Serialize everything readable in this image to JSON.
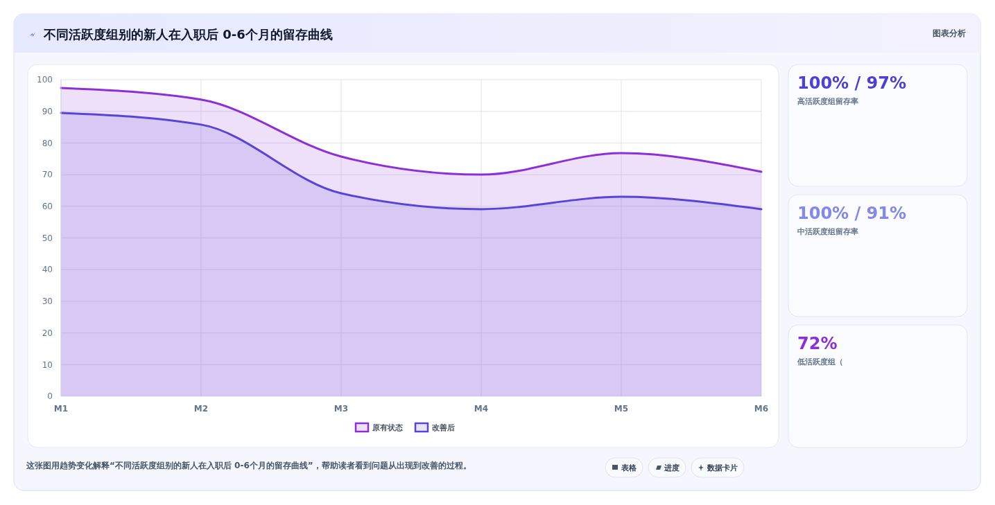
{
  "chart_data": [
    {
      "type": "area",
      "title": "不同活跃度组别的新人在入职后 0-6个月的留存曲线",
      "categories": [
        "M1",
        "M2",
        "M3",
        "M4",
        "M5",
        "M6"
      ],
      "series": [
        {
          "name": "原有状态",
          "color": "#8d2fd8",
          "values": [
            97.4,
            93.7,
            75.7,
            70,
            76.8,
            70.9
          ]
        },
        {
          "name": "改善后",
          "color": "#5b43d9",
          "values": [
            89.5,
            85.8,
            64.1,
            59.1,
            63,
            59.1
          ]
        }
      ],
      "ylim": [
        0,
        100
      ],
      "yticks": [
        0,
        10,
        20,
        30,
        40,
        50,
        60,
        70,
        80,
        90,
        100
      ],
      "grid": true,
      "legend": "bottom",
      "marker": "none",
      "line_style": "solid",
      "annotations": [
        "图表分析",
        "这张图用趋势变化解释“不同活跃度组别的新人在入职后 0-6个月的留存曲线”，帮助读者看到问题从出现到改善的过程。",
        "表格",
        "进度",
        "数据卡片"
      ]
    },
    {
      "type": "other",
      "annotations": [
        "100% / 97%",
        "高活跃度组留存率",
        "100% / 91%",
        "中活跃度组留存率",
        "72%",
        "低活跃度组（"
      ]
    }
  ]
}
